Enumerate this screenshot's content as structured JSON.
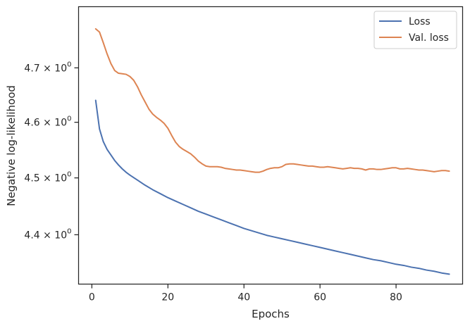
{
  "chart_data": {
    "type": "line",
    "title": "",
    "xlabel": "Epochs",
    "ylabel": "Negative log-likelihood",
    "xlim": [
      -3.5,
      97.5
    ],
    "ylim": [
      4.315,
      4.815
    ],
    "yscale": "log",
    "grid": false,
    "legend_position": "top-right",
    "x_ticks": [
      {
        "value": 0,
        "label": "0"
      },
      {
        "value": 20,
        "label": "20"
      },
      {
        "value": 40,
        "label": "40"
      },
      {
        "value": 60,
        "label": "60"
      },
      {
        "value": 80,
        "label": "80"
      }
    ],
    "y_ticks": [
      {
        "value": 4.4,
        "mantissa": "4.4",
        "base": "10",
        "exp": "0"
      },
      {
        "value": 4.5,
        "mantissa": "4.5",
        "base": "10",
        "exp": "0"
      },
      {
        "value": 4.6,
        "mantissa": "4.6",
        "base": "10",
        "exp": "0"
      },
      {
        "value": 4.7,
        "mantissa": "4.7",
        "base": "10",
        "exp": "0"
      }
    ],
    "series": [
      {
        "name": "Loss",
        "color": "#4c72b0",
        "points": [
          [
            1,
            4.64
          ],
          [
            2,
            4.588
          ],
          [
            3,
            4.565
          ],
          [
            4,
            4.551
          ],
          [
            5,
            4.541
          ],
          [
            6,
            4.531
          ],
          [
            7,
            4.523
          ],
          [
            8,
            4.516
          ],
          [
            9,
            4.51
          ],
          [
            10,
            4.505
          ],
          [
            12,
            4.496
          ],
          [
            14,
            4.487
          ],
          [
            16,
            4.479
          ],
          [
            18,
            4.472
          ],
          [
            20,
            4.465
          ],
          [
            22,
            4.459
          ],
          [
            24,
            4.453
          ],
          [
            26,
            4.447
          ],
          [
            28,
            4.441
          ],
          [
            30,
            4.436
          ],
          [
            32,
            4.431
          ],
          [
            34,
            4.426
          ],
          [
            36,
            4.421
          ],
          [
            38,
            4.416
          ],
          [
            40,
            4.411
          ],
          [
            42,
            4.407
          ],
          [
            44,
            4.403
          ],
          [
            46,
            4.399
          ],
          [
            48,
            4.396
          ],
          [
            50,
            4.393
          ],
          [
            52,
            4.39
          ],
          [
            54,
            4.387
          ],
          [
            56,
            4.384
          ],
          [
            58,
            4.381
          ],
          [
            60,
            4.378
          ],
          [
            62,
            4.375
          ],
          [
            64,
            4.372
          ],
          [
            66,
            4.369
          ],
          [
            68,
            4.366
          ],
          [
            70,
            4.363
          ],
          [
            72,
            4.36
          ],
          [
            74,
            4.357
          ],
          [
            76,
            4.355
          ],
          [
            78,
            4.352
          ],
          [
            80,
            4.349
          ],
          [
            82,
            4.347
          ],
          [
            84,
            4.344
          ],
          [
            86,
            4.342
          ],
          [
            88,
            4.339
          ],
          [
            90,
            4.337
          ],
          [
            92,
            4.334
          ],
          [
            94,
            4.332
          ]
        ]
      },
      {
        "name": "Val. loss",
        "color": "#dd8452",
        "points": [
          [
            1,
            4.773
          ],
          [
            2,
            4.767
          ],
          [
            3,
            4.747
          ],
          [
            4,
            4.726
          ],
          [
            5,
            4.708
          ],
          [
            6,
            4.695
          ],
          [
            7,
            4.69
          ],
          [
            8,
            4.689
          ],
          [
            9,
            4.688
          ],
          [
            10,
            4.684
          ],
          [
            11,
            4.677
          ],
          [
            12,
            4.665
          ],
          [
            13,
            4.65
          ],
          [
            14,
            4.637
          ],
          [
            15,
            4.624
          ],
          [
            16,
            4.615
          ],
          [
            17,
            4.609
          ],
          [
            18,
            4.604
          ],
          [
            19,
            4.598
          ],
          [
            20,
            4.589
          ],
          [
            21,
            4.576
          ],
          [
            22,
            4.564
          ],
          [
            23,
            4.556
          ],
          [
            24,
            4.551
          ],
          [
            25,
            4.547
          ],
          [
            26,
            4.543
          ],
          [
            27,
            4.537
          ],
          [
            28,
            4.53
          ],
          [
            29,
            4.525
          ],
          [
            30,
            4.521
          ],
          [
            31,
            4.52
          ],
          [
            32,
            4.52
          ],
          [
            33,
            4.52
          ],
          [
            34,
            4.519
          ],
          [
            35,
            4.517
          ],
          [
            36,
            4.516
          ],
          [
            37,
            4.515
          ],
          [
            38,
            4.514
          ],
          [
            39,
            4.514
          ],
          [
            40,
            4.513
          ],
          [
            41,
            4.512
          ],
          [
            42,
            4.511
          ],
          [
            43,
            4.51
          ],
          [
            44,
            4.51
          ],
          [
            45,
            4.512
          ],
          [
            46,
            4.515
          ],
          [
            47,
            4.517
          ],
          [
            48,
            4.518
          ],
          [
            49,
            4.518
          ],
          [
            50,
            4.52
          ],
          [
            51,
            4.524
          ],
          [
            52,
            4.525
          ],
          [
            53,
            4.525
          ],
          [
            54,
            4.524
          ],
          [
            55,
            4.523
          ],
          [
            56,
            4.522
          ],
          [
            57,
            4.521
          ],
          [
            58,
            4.521
          ],
          [
            59,
            4.52
          ],
          [
            60,
            4.519
          ],
          [
            61,
            4.519
          ],
          [
            62,
            4.52
          ],
          [
            63,
            4.519
          ],
          [
            64,
            4.518
          ],
          [
            65,
            4.517
          ],
          [
            66,
            4.516
          ],
          [
            67,
            4.517
          ],
          [
            68,
            4.518
          ],
          [
            69,
            4.517
          ],
          [
            70,
            4.517
          ],
          [
            71,
            4.516
          ],
          [
            72,
            4.514
          ],
          [
            73,
            4.516
          ],
          [
            74,
            4.516
          ],
          [
            75,
            4.515
          ],
          [
            76,
            4.515
          ],
          [
            77,
            4.516
          ],
          [
            78,
            4.517
          ],
          [
            79,
            4.518
          ],
          [
            80,
            4.518
          ],
          [
            81,
            4.516
          ],
          [
            82,
            4.516
          ],
          [
            83,
            4.517
          ],
          [
            84,
            4.516
          ],
          [
            85,
            4.515
          ],
          [
            86,
            4.514
          ],
          [
            87,
            4.514
          ],
          [
            88,
            4.513
          ],
          [
            89,
            4.512
          ],
          [
            90,
            4.511
          ],
          [
            91,
            4.512
          ],
          [
            92,
            4.513
          ],
          [
            93,
            4.513
          ],
          [
            94,
            4.512
          ]
        ]
      }
    ]
  }
}
